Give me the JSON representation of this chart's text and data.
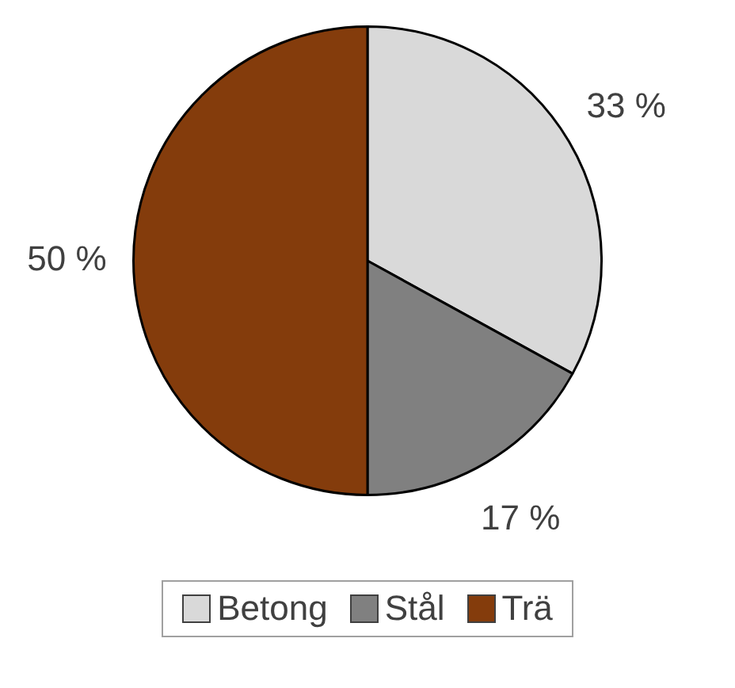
{
  "chart_data": {
    "type": "pie",
    "categories": [
      "Betong",
      "Stål",
      "Trä"
    ],
    "values": [
      33,
      17,
      50
    ],
    "colors": [
      "#d9d9d9",
      "#808080",
      "#843c0c"
    ],
    "value_labels": [
      "33 %",
      "17 %",
      "50 %"
    ],
    "legend": "bottom"
  }
}
